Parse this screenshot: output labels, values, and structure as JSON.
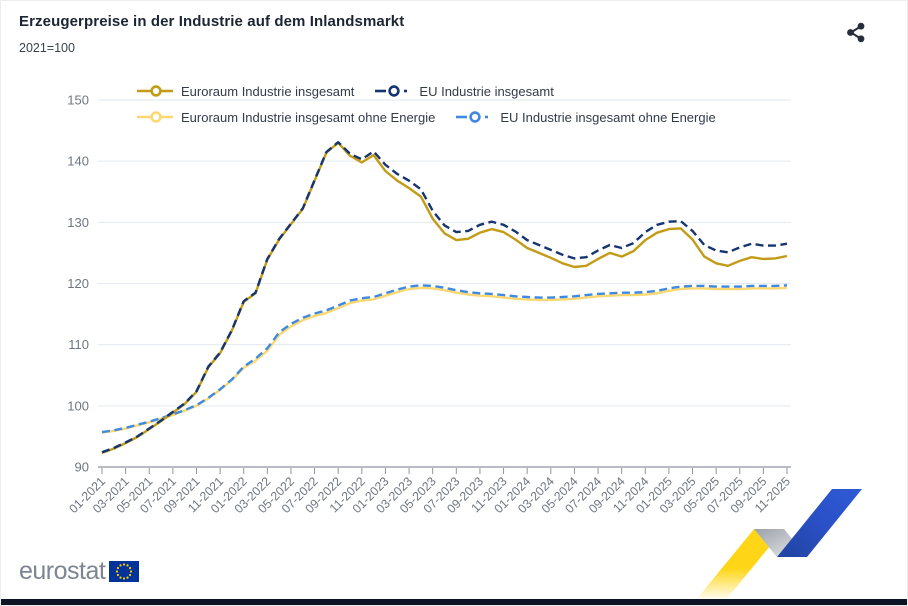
{
  "header": {
    "title": "Erzeugerpreise in der Industrie auf dem Inlandsmarkt",
    "subtitle": "2021=100"
  },
  "toolbar": {
    "share_icon": "share-icon"
  },
  "footer": {
    "brand": "eurostat",
    "flag_icon": "eu-flag-icon"
  },
  "colors": {
    "gold": "#c39b16",
    "navy": "#163570",
    "light_yellow": "#fcd873",
    "light_blue": "#3f8ae0",
    "grid": "#e3e9ef",
    "axis": "#8e959e",
    "tick_text": "#6f7680",
    "title_text": "#1d2533",
    "brand_gray": "#7c8591",
    "eu_blue": "#003399",
    "star_yellow": "#ffcc00",
    "ribbon_yellow": "#ffd617",
    "ribbon_blue": "#2a50c5",
    "bottom_bar": "#0d1424"
  },
  "chart_data": {
    "type": "line",
    "title": "Erzeugerpreise in der Industrie auf dem Inlandsmarkt",
    "subtitle": "2021=100",
    "xlabel": "",
    "ylabel": "",
    "ylim": [
      90,
      150
    ],
    "yticks": [
      90,
      100,
      110,
      120,
      130,
      140,
      150
    ],
    "grid": true,
    "legend_position": "top",
    "x_tick_step": 2,
    "categories": [
      "01-2021",
      "02-2021",
      "03-2021",
      "04-2021",
      "05-2021",
      "06-2021",
      "07-2021",
      "08-2021",
      "09-2021",
      "10-2021",
      "11-2021",
      "12-2021",
      "01-2022",
      "02-2022",
      "03-2022",
      "04-2022",
      "05-2022",
      "06-2022",
      "07-2022",
      "08-2022",
      "09-2022",
      "10-2022",
      "11-2022",
      "12-2022",
      "01-2023",
      "02-2023",
      "03-2023",
      "04-2023",
      "05-2023",
      "06-2023",
      "07-2023",
      "08-2023",
      "09-2023",
      "10-2023",
      "11-2023",
      "12-2023",
      "01-2024",
      "02-2024",
      "03-2024",
      "04-2024",
      "05-2024",
      "06-2024",
      "07-2024",
      "08-2024",
      "09-2024",
      "10-2024",
      "11-2024",
      "12-2024",
      "01-2025",
      "02-2025",
      "03-2025",
      "04-2025",
      "05-2025",
      "06-2025",
      "07-2025",
      "08-2025",
      "09-2025",
      "10-2025",
      "11-2025"
    ],
    "series": [
      {
        "name": "Euroraum Industrie insgesamt",
        "color": "#c39b16",
        "dashed": false,
        "values": [
          92.3,
          93.0,
          93.9,
          94.9,
          96.2,
          97.5,
          98.9,
          100.3,
          102.3,
          106.3,
          108.6,
          112.3,
          117.0,
          118.4,
          123.9,
          127.2,
          129.7,
          132.2,
          136.8,
          141.4,
          143.0,
          140.9,
          139.8,
          141.0,
          138.4,
          136.8,
          135.6,
          134.2,
          130.6,
          128.2,
          127.1,
          127.3,
          128.3,
          128.9,
          128.4,
          127.2,
          125.8,
          125.0,
          124.2,
          123.3,
          122.7,
          122.9,
          124.0,
          125.0,
          124.4,
          125.3,
          127.1,
          128.3,
          128.9,
          129.0,
          127.2,
          124.4,
          123.3,
          122.9,
          123.7,
          124.3,
          124.0,
          124.1,
          124.5
        ]
      },
      {
        "name": "EU Industrie insgesamt",
        "color": "#163570",
        "dashed": true,
        "values": [
          92.4,
          93.1,
          94.0,
          95.0,
          96.3,
          97.6,
          99.0,
          100.4,
          102.4,
          106.4,
          108.7,
          112.4,
          117.1,
          118.5,
          124.0,
          127.3,
          129.8,
          132.3,
          136.9,
          141.5,
          143.1,
          141.2,
          140.3,
          141.6,
          139.4,
          137.9,
          136.8,
          135.4,
          131.9,
          129.5,
          128.4,
          128.6,
          129.6,
          130.1,
          129.6,
          128.5,
          127.1,
          126.3,
          125.5,
          124.7,
          124.1,
          124.3,
          125.4,
          126.3,
          125.8,
          126.6,
          128.4,
          129.6,
          130.1,
          130.2,
          128.6,
          126.3,
          125.4,
          125.1,
          125.9,
          126.5,
          126.2,
          126.2,
          126.5
        ]
      },
      {
        "name": "Euroraum Industrie insgesamt ohne Energie",
        "color": "#fcd873",
        "dashed": false,
        "values": [
          95.6,
          95.9,
          96.3,
          96.8,
          97.3,
          97.9,
          98.5,
          99.2,
          100.0,
          101.2,
          102.6,
          104.2,
          106.2,
          107.4,
          109.0,
          111.6,
          113.0,
          114.0,
          114.7,
          115.2,
          116.0,
          116.8,
          117.2,
          117.4,
          118.0,
          118.6,
          119.1,
          119.3,
          119.2,
          118.9,
          118.5,
          118.2,
          118.0,
          117.9,
          117.7,
          117.5,
          117.4,
          117.3,
          117.3,
          117.4,
          117.5,
          117.7,
          117.9,
          118.0,
          118.1,
          118.1,
          118.2,
          118.4,
          118.8,
          119.1,
          119.2,
          119.2,
          119.1,
          119.1,
          119.1,
          119.2,
          119.2,
          119.2,
          119.3
        ]
      },
      {
        "name": "EU Industrie insgesamt ohne Energie",
        "color": "#3f8ae0",
        "dashed": true,
        "values": [
          95.7,
          96.0,
          96.4,
          96.9,
          97.4,
          98.0,
          98.6,
          99.3,
          100.1,
          101.3,
          102.7,
          104.3,
          106.4,
          107.7,
          109.4,
          112.0,
          113.4,
          114.4,
          115.1,
          115.6,
          116.4,
          117.2,
          117.6,
          117.8,
          118.4,
          119.0,
          119.5,
          119.7,
          119.6,
          119.3,
          118.9,
          118.6,
          118.4,
          118.3,
          118.1,
          117.9,
          117.8,
          117.7,
          117.7,
          117.8,
          117.9,
          118.1,
          118.3,
          118.4,
          118.5,
          118.5,
          118.6,
          118.8,
          119.2,
          119.5,
          119.6,
          119.6,
          119.5,
          119.5,
          119.5,
          119.6,
          119.6,
          119.6,
          119.7
        ]
      }
    ]
  }
}
